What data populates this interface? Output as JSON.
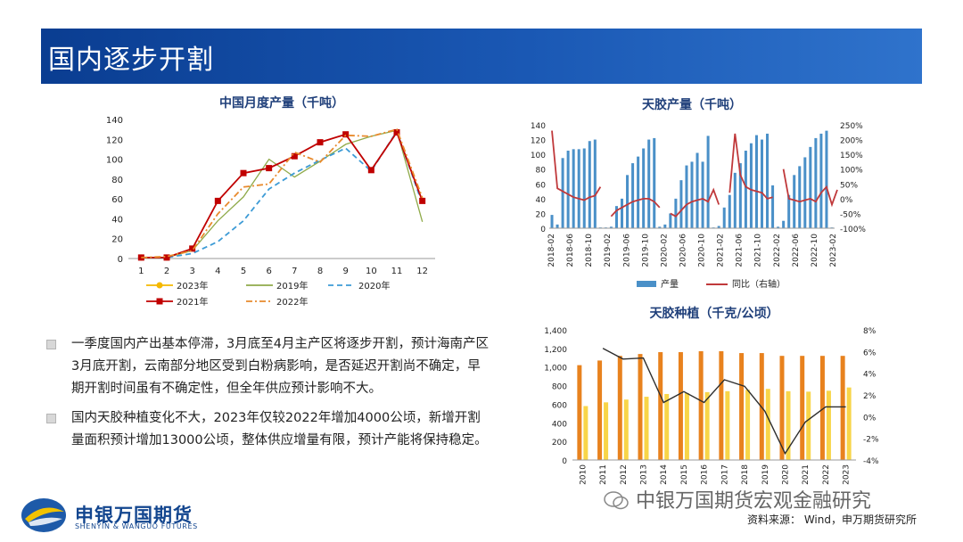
{
  "banner": {
    "title": "国内逐步开割"
  },
  "chart1": {
    "chart_data": {
      "type": "line",
      "title": "中国月度产量（千吨）",
      "xlabel": "",
      "ylabel": "",
      "categories": [
        "1",
        "2",
        "3",
        "4",
        "5",
        "6",
        "7",
        "8",
        "9",
        "10",
        "11",
        "12"
      ],
      "ylim": [
        0,
        140
      ],
      "yticks": [
        0,
        20,
        40,
        60,
        80,
        100,
        120,
        140
      ],
      "legend_position": "bottom",
      "series": [
        {
          "name": "2023年",
          "color": "#f5b800",
          "style": "marker-circle",
          "values": [
            1,
            1,
            null,
            null,
            null,
            null,
            null,
            null,
            null,
            null,
            null,
            null
          ]
        },
        {
          "name": "2019年",
          "color": "#8faa4a",
          "style": "solid",
          "values": [
            1,
            1,
            8,
            38,
            62,
            100,
            82,
            98,
            115,
            123,
            129,
            37
          ]
        },
        {
          "name": "2020年",
          "color": "#3d9bd6",
          "style": "dashed",
          "values": [
            1,
            1,
            5,
            17,
            38,
            70,
            86,
            99,
            111,
            88,
            128,
            55
          ]
        },
        {
          "name": "2021年",
          "color": "#c00000",
          "style": "marker-square",
          "values": [
            1,
            1,
            10,
            58,
            86,
            91,
            103,
            117,
            125,
            89,
            127,
            58
          ]
        },
        {
          "name": "2022年",
          "color": "#e88a2d",
          "style": "dashdot",
          "values": [
            1,
            2,
            8,
            45,
            72,
            75,
            107,
            97,
            124,
            123,
            130,
            61
          ]
        }
      ]
    }
  },
  "chart2": {
    "chart_data": {
      "type": "bar",
      "title": "天胶产量（千吨）",
      "xlabel": "",
      "ylabel": "",
      "ylim": [
        0,
        140
      ],
      "yticks": [
        0,
        20,
        40,
        60,
        80,
        100,
        120,
        140
      ],
      "y2lim": [
        -100,
        250
      ],
      "y2ticks": [
        "-100%",
        "-50%",
        "0%",
        "50%",
        "100%",
        "150%",
        "200%",
        "250%"
      ],
      "xticks": [
        "2018-02",
        "2018-06",
        "2018-10",
        "2019-02",
        "2019-06",
        "2019-10",
        "2020-02",
        "2020-06",
        "2020-10",
        "2021-02",
        "2021-06",
        "2021-10",
        "2022-02",
        "2022-06",
        "2022-10",
        "2023-02"
      ],
      "legend_position": "bottom",
      "series": [
        {
          "name": "产量",
          "color": "#4a90c8",
          "type": "bar",
          "values": [
            18,
            5,
            95,
            105,
            107,
            107,
            108,
            118,
            120,
            1,
            1,
            2,
            30,
            40,
            72,
            88,
            97,
            108,
            120,
            122,
            2,
            5,
            20,
            40,
            65,
            85,
            90,
            102,
            90,
            125,
            1,
            3,
            28,
            45,
            75,
            88,
            105,
            115,
            126,
            120,
            128,
            58,
            2,
            10,
            45,
            72,
            84,
            96,
            110,
            122,
            128,
            132,
            1
          ]
        },
        {
          "name": "同比（右轴）",
          "color": "#c0393b",
          "type": "line",
          "values": [
            230,
            35,
            25,
            15,
            5,
            0,
            -5,
            5,
            10,
            40,
            null,
            -60,
            -40,
            -30,
            -20,
            -10,
            -5,
            0,
            0,
            -10,
            -30,
            null,
            -50,
            -60,
            -40,
            -20,
            -10,
            -5,
            0,
            -10,
            30,
            -20,
            null,
            20,
            220,
            80,
            40,
            30,
            25,
            20,
            0,
            5,
            null,
            100,
            0,
            -5,
            -10,
            -5,
            0,
            -10,
            20,
            40,
            -20,
            30,
            null
          ]
        }
      ]
    }
  },
  "chart3": {
    "chart_data": {
      "type": "bar",
      "title": "天胶种植（千克/公顷）",
      "xlabel": "",
      "ylabel": "",
      "categories": [
        "2010",
        "2011",
        "2012",
        "2013",
        "2014",
        "2015",
        "2016",
        "2017",
        "2018",
        "2019",
        "2020",
        "2021",
        "2022",
        "2023"
      ],
      "ylim": [
        0,
        1400
      ],
      "yticks": [
        "0",
        "200",
        "400",
        "600",
        "800",
        "1,000",
        "1,200",
        "1,400"
      ],
      "y2lim": [
        -4,
        8
      ],
      "y2ticks": [
        "-4%",
        "-2%",
        "0%",
        "2%",
        "4%",
        "6%",
        "8%"
      ],
      "series": [
        {
          "name": "",
          "color": "#e8821e",
          "type": "bar",
          "values": [
            1020,
            1070,
            1120,
            1140,
            1160,
            1160,
            1170,
            1170,
            1150,
            1150,
            1120,
            1120,
            1120,
            1120
          ]
        },
        {
          "name": "",
          "color": "#f8d548",
          "type": "bar",
          "values": [
            580,
            620,
            650,
            680,
            710,
            720,
            730,
            740,
            755,
            765,
            740,
            735,
            745,
            780
          ]
        },
        {
          "name": "",
          "color": "#2e2e2e",
          "type": "line",
          "values": [
            null,
            6.3,
            5.3,
            5.4,
            1.3,
            2.3,
            1.3,
            3.4,
            2.8,
            0.5,
            -3.4,
            -0.5,
            0.9,
            0.9
          ]
        }
      ]
    }
  },
  "bullets": [
    "一季度国内产出基本停滞，3月底至4月主产区将逐步开割，预计海南产区3月底开割，云南部分地区受到白粉病影响，是否延迟开割尚不确定，早期开割时间虽有不确定性，但全年供应预计影响不大。",
    "国内天胶种植变化不大，2023年仅较2022年增加4000公顷，新增开割量面积预计增加13000公顷，整体供应增量有限，预计产能将保持稳定。"
  ],
  "logo": {
    "name_cn": "申银万国期货",
    "name_en": "SHENYIN & WANGUO FUTURES"
  },
  "watermark": "中银万国期货宏观金融研究",
  "source": "资料来源：  Wind，申万期货研究所"
}
